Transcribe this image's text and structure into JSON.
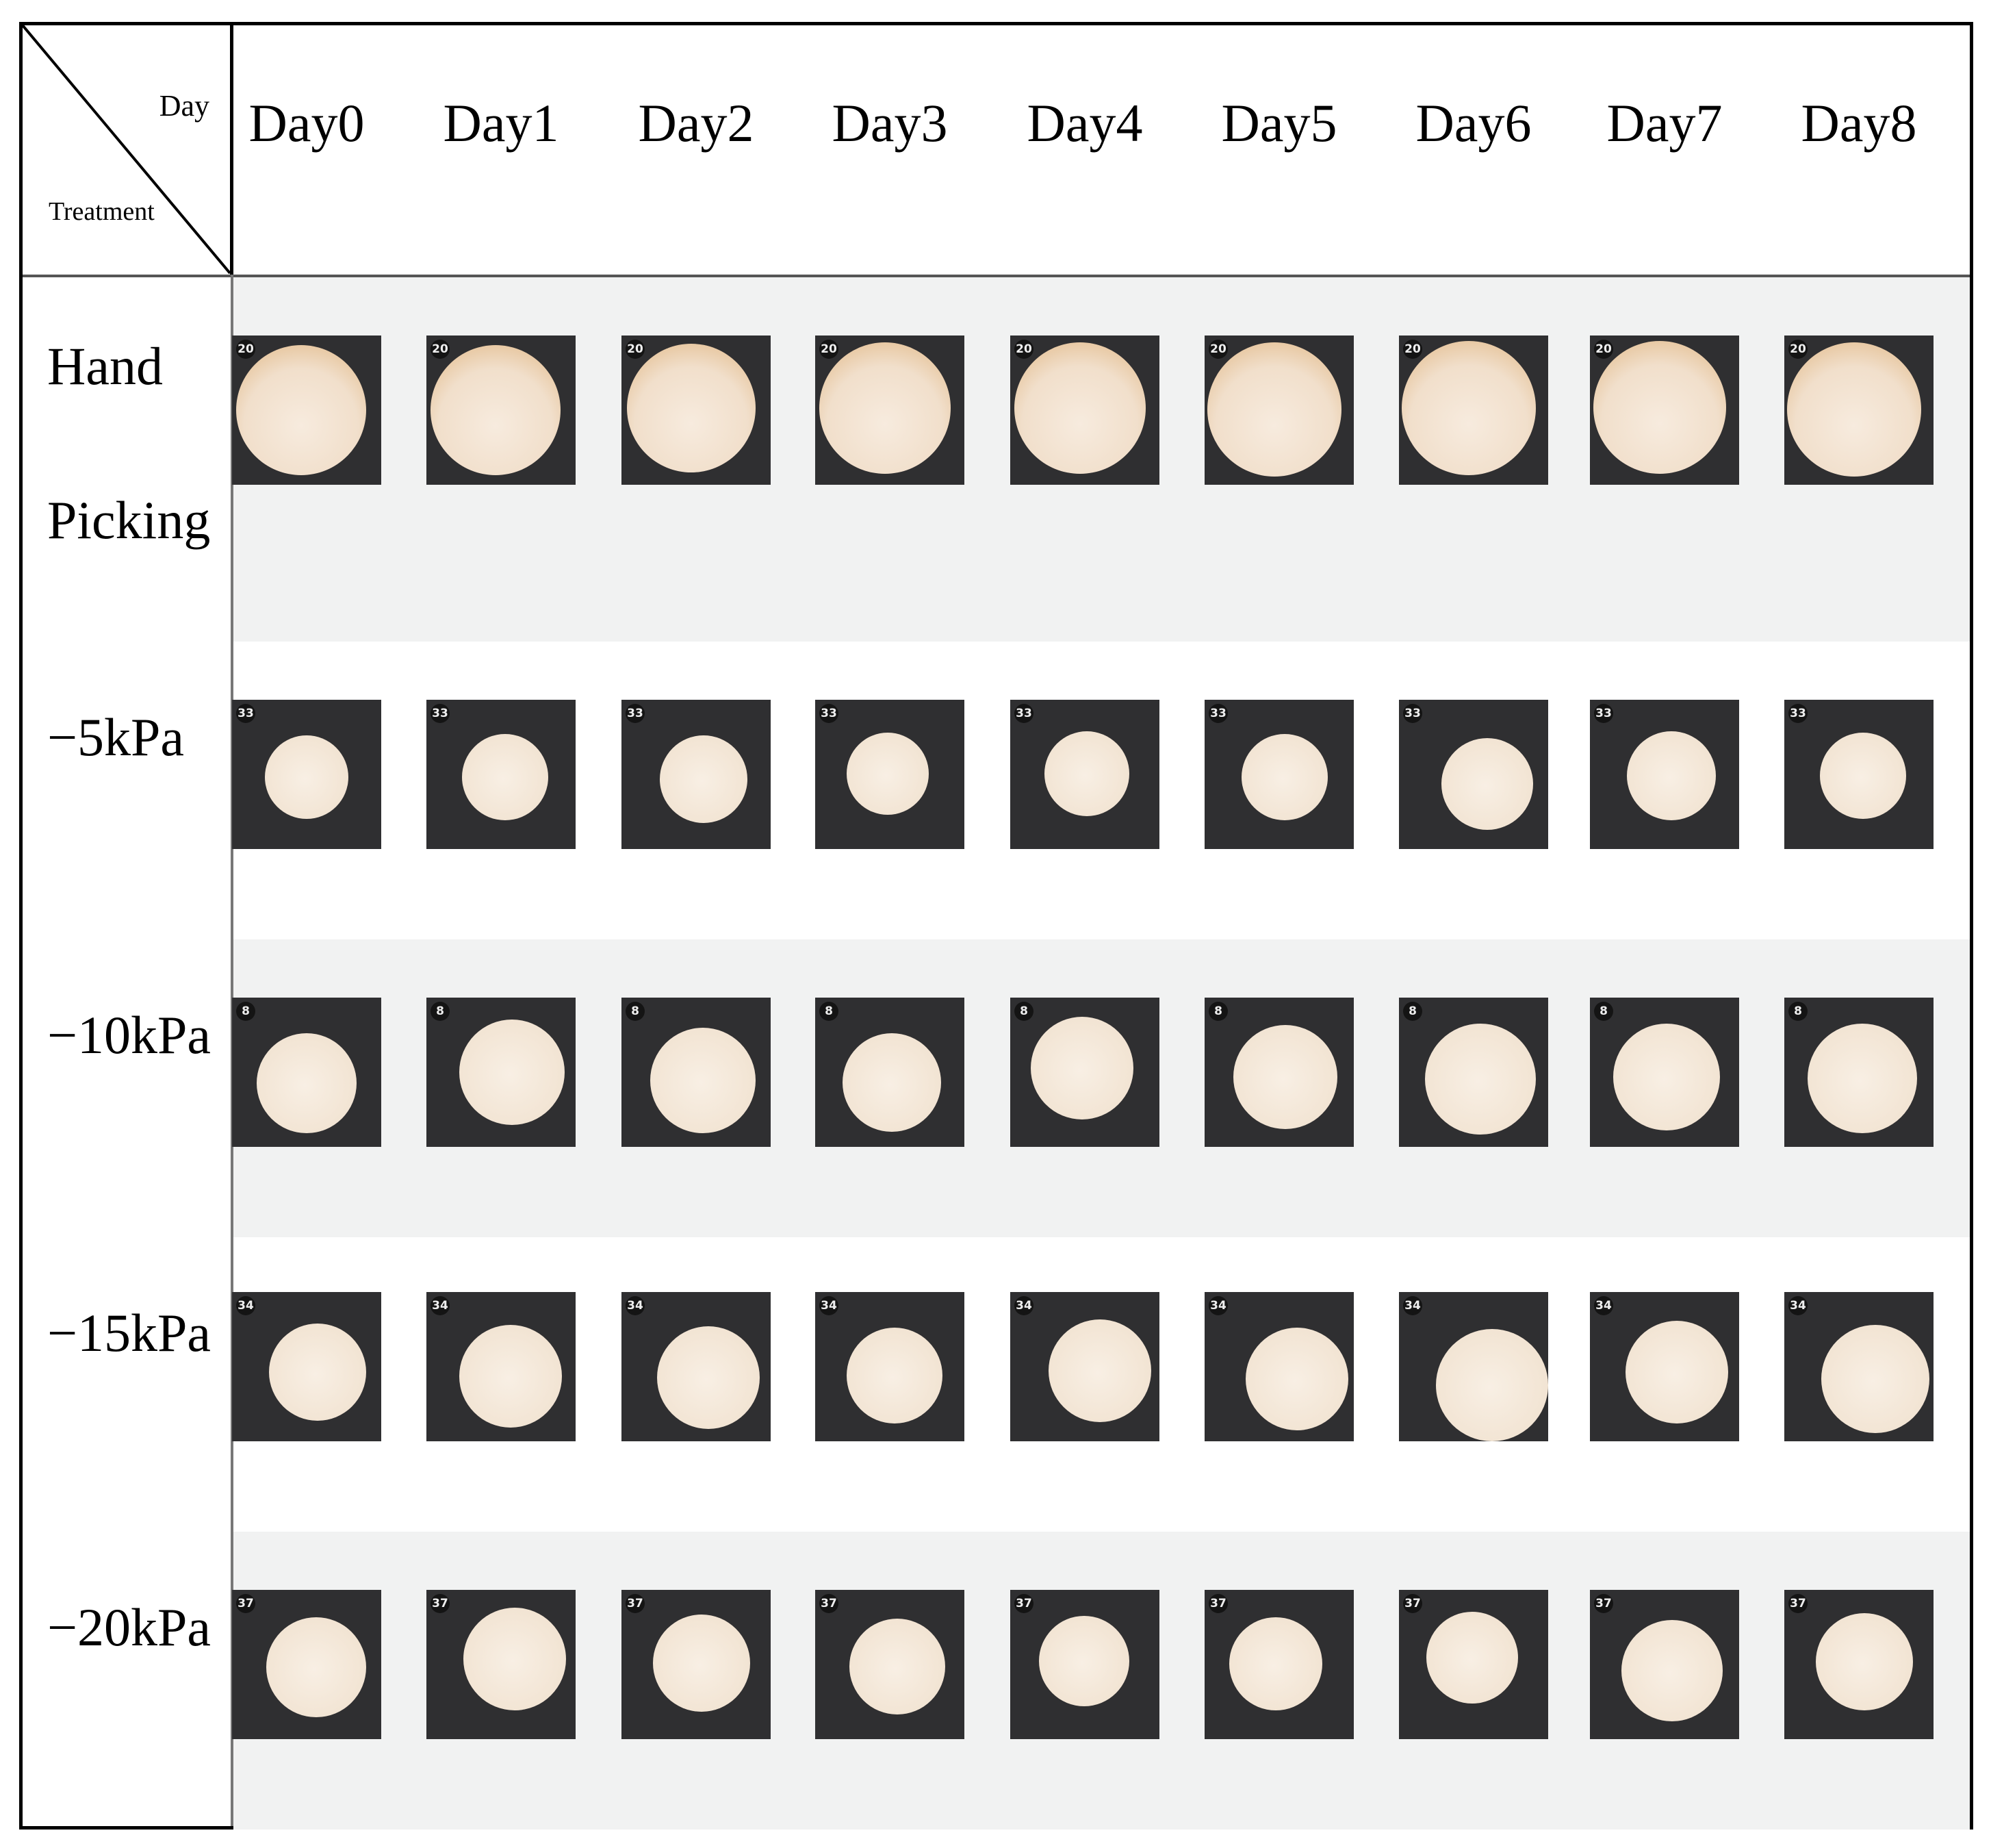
{
  "header": {
    "corner_day_label": "Day",
    "corner_treatment_label": "Treatment",
    "days": [
      "Day0",
      "Day1",
      "Day2",
      "Day3",
      "Day4",
      "Day5",
      "Day6",
      "Day7",
      "Day8"
    ]
  },
  "rows": [
    {
      "label_lines": [
        "Hand",
        "Picking"
      ],
      "sample_tag": "20"
    },
    {
      "label_lines": [
        "−5kPa"
      ],
      "sample_tag": "33"
    },
    {
      "label_lines": [
        "−10kPa"
      ],
      "sample_tag": "8"
    },
    {
      "label_lines": [
        "−15kPa"
      ],
      "sample_tag": "34"
    },
    {
      "label_lines": [
        "−20kPa"
      ],
      "sample_tag": "37"
    }
  ],
  "colors": {
    "thumbnail_background": "#2f2f31",
    "mushroom_cap": "#f2e4d3",
    "browning": "#c9935a",
    "shaded_row": "#f1f2f2"
  }
}
